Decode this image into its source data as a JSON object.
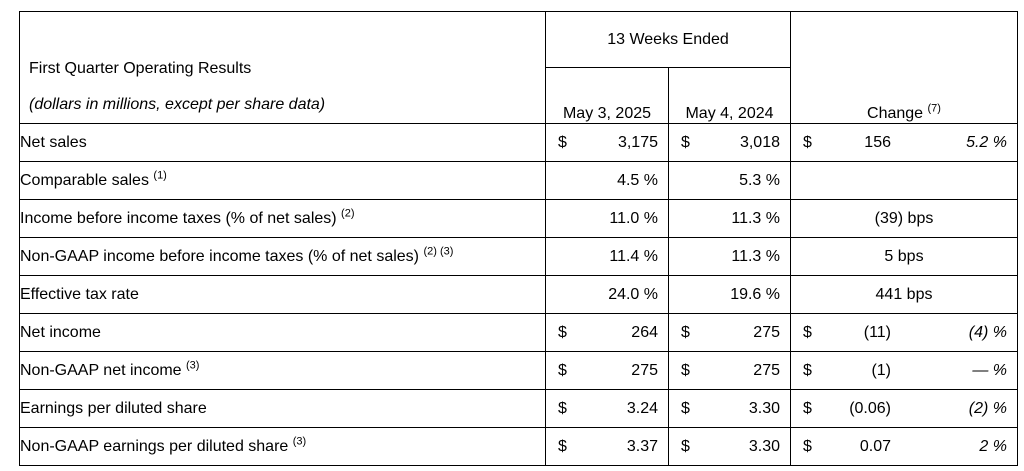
{
  "header": {
    "title": "First Quarter Operating Results",
    "subtitle": "(dollars in millions, except per share data)",
    "period_group": "13 Weeks Ended",
    "col_current": "May 3, 2025",
    "col_prior": "May 4, 2024",
    "col_change": "Change",
    "col_change_note": "(7)"
  },
  "rows": [
    {
      "label": "Net sales",
      "note": "",
      "cur_sym": "$",
      "cur": "3,175",
      "prior_sym": "$",
      "prior": "3,018",
      "chg_sym": "$",
      "chg": "156",
      "chg_pct": "5.2 %"
    },
    {
      "label": "Comparable sales",
      "note": "(1)",
      "cur": "4.5 %",
      "prior": "5.3 %"
    },
    {
      "label": "Income before income taxes (% of net sales)",
      "note": "(2)",
      "cur": "11.0 %",
      "prior": "11.3 %",
      "chg_text": "(39) bps"
    },
    {
      "label": "Non-GAAP income before income taxes (% of net sales)",
      "note": "(2) (3)",
      "cur": "11.4 %",
      "prior": "11.3 %",
      "chg_text": "5 bps"
    },
    {
      "label": "Effective tax rate",
      "note": "",
      "cur": "24.0 %",
      "prior": "19.6 %",
      "chg_text": "441 bps"
    },
    {
      "label": "Net income",
      "note": "",
      "cur_sym": "$",
      "cur": "264",
      "prior_sym": "$",
      "prior": "275",
      "chg_sym": "$",
      "chg": "(11)",
      "chg_pct": "(4) %"
    },
    {
      "label": "Non-GAAP net income",
      "note": "(3)",
      "cur_sym": "$",
      "cur": "275",
      "prior_sym": "$",
      "prior": "275",
      "chg_sym": "$",
      "chg": "(1)",
      "chg_pct": "— %"
    },
    {
      "label": "Earnings per diluted share",
      "note": "",
      "cur_sym": "$",
      "cur": "3.24",
      "prior_sym": "$",
      "prior": "3.30",
      "chg_sym": "$",
      "chg": "(0.06)",
      "chg_pct": "(2) %"
    },
    {
      "label": "Non-GAAP earnings per diluted share",
      "note": "(3)",
      "cur_sym": "$",
      "cur": "3.37",
      "prior_sym": "$",
      "prior": "3.30",
      "chg_sym": "$",
      "chg": "0.07",
      "chg_pct": "2 %"
    }
  ]
}
